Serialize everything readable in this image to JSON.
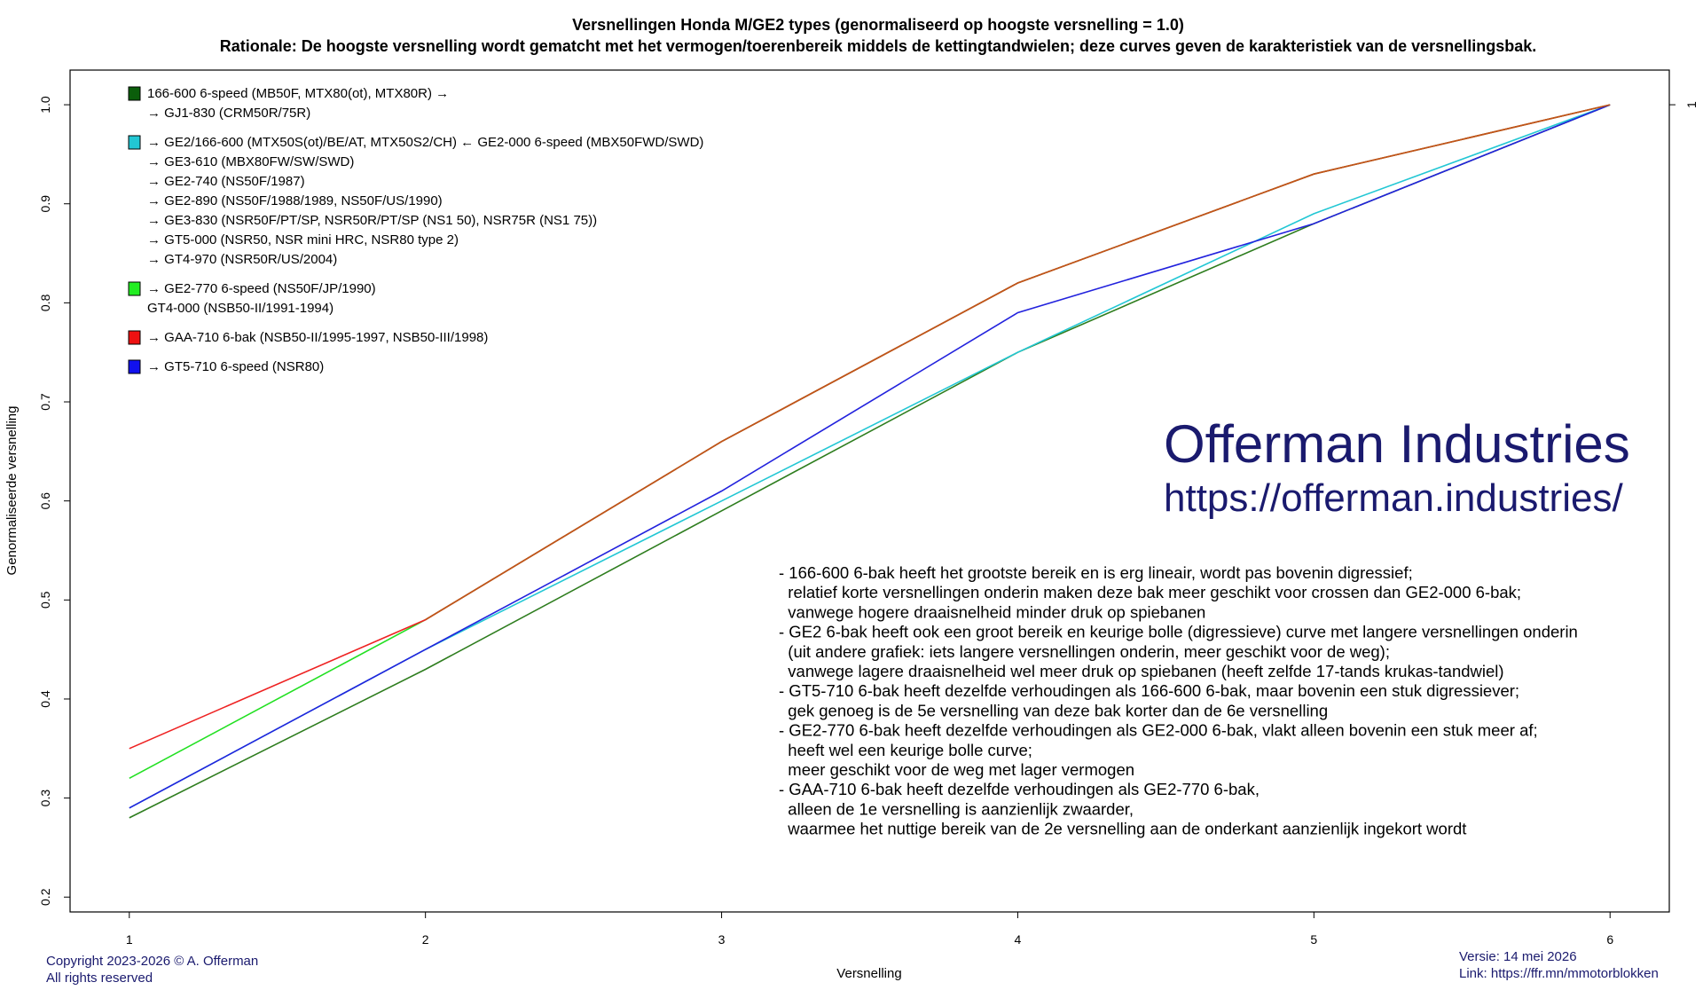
{
  "chart_data": {
    "type": "line",
    "title": "Versnellingen Honda M/GE2 types (genormaliseerd op hoogste versnelling = 1.0)",
    "subtitle": "Rationale: De hoogste versnelling wordt gematcht met het vermogen/toerenbereik middels de kettingtandwielen; deze curves geven de karakteristiek van de versnellingsbak.",
    "xlabel": "Versnelling",
    "ylabel": "Genormaliseerde versnelling",
    "x": [
      1,
      2,
      3,
      4,
      5,
      6
    ],
    "xlim": [
      0.8,
      6.2
    ],
    "ylim": [
      0.185,
      1.035
    ],
    "xticks": [
      "1",
      "2",
      "3",
      "4",
      "5",
      "6"
    ],
    "yticks": [
      "0.2",
      "0.3",
      "0.4",
      "0.5",
      "0.6",
      "0.7",
      "0.8",
      "0.9",
      "1.0"
    ],
    "ytick_values": [
      0.2,
      0.3,
      0.4,
      0.5,
      0.6,
      0.7,
      0.8,
      0.9,
      1.0
    ],
    "right_tick": "1",
    "grid": false,
    "legend_position": "top-left",
    "series": [
      {
        "name": "166-600 6-speed",
        "color": "#2e7d1e",
        "values": [
          0.28,
          0.43,
          0.59,
          0.75,
          0.88,
          1.0
        ]
      },
      {
        "name": "GE2-000 6-speed",
        "color": "#22c7d4",
        "values": [
          0.29,
          0.45,
          0.6,
          0.75,
          0.89,
          1.0
        ]
      },
      {
        "name": "GE2-770 6-speed",
        "color": "#22e022",
        "values": [
          0.32,
          0.48,
          0.66,
          0.82,
          0.93,
          1.0
        ]
      },
      {
        "name": "GAA-710 6-bak",
        "color": "#ee2222",
        "values": [
          0.35,
          0.48,
          0.66,
          0.82,
          0.93,
          1.0
        ]
      },
      {
        "name": "GT5-710 6-speed",
        "color": "#2222dd",
        "values": [
          0.29,
          0.45,
          0.61,
          0.79,
          0.88,
          1.0
        ]
      }
    ],
    "overlay_series": {
      "color": "#c0551a",
      "from_index": 1,
      "values": [
        0.35,
        0.48,
        0.66,
        0.82,
        0.93,
        1.0
      ]
    },
    "legend": [
      {
        "color": "#0b5e0b",
        "lines": [
          "166-600 6-speed (MB50F, MTX80(ot), MTX80R) →",
          "→ GJ1-830 (CRM50R/75R)"
        ]
      },
      {
        "color": "#22c7d4",
        "lines": [
          "→ GE2/166-600 (MTX50S(ot)/BE/AT, MTX50S2/CH) ← GE2-000 6-speed (MBX50FWD/SWD)",
          "→ GE3-610 (MBX80FW/SW/SWD)",
          "→ GE2-740 (NS50F/1987)",
          "→ GE2-890 (NS50F/1988/1989, NS50F/US/1990)",
          "→ GE3-830 (NSR50F/PT/SP, NSR50R/PT/SP (NS1 50), NSR75R (NS1 75))",
          "→ GT5-000 (NSR50, NSR mini HRC, NSR80 type 2)",
          "→ GT4-970 (NSR50R/US/2004)"
        ]
      },
      {
        "color": "#22ee22",
        "lines": [
          "→ GE2-770 6-speed (NS50F/JP/1990)",
          "GT4-000 (NSB50-II/1991-1994)"
        ]
      },
      {
        "color": "#ee1111",
        "lines": [
          "→ GAA-710 6-bak (NSB50-II/1995-1997, NSB50-III/1998)"
        ]
      },
      {
        "color": "#1111ee",
        "lines": [
          "→ GT5-710 6-speed (NSR80)"
        ]
      }
    ],
    "brand": {
      "name": "Offerman Industries",
      "url": "https://offerman.industries/"
    },
    "notes": [
      "- 166-600 6-bak heeft het grootste bereik en is erg lineair, wordt pas bovenin digressief;",
      "  relatief korte versnellingen onderin maken deze bak meer geschikt voor crossen dan GE2-000 6-bak;",
      "  vanwege hogere draaisnelheid minder druk op spiebanen",
      "- GE2 6-bak heeft ook een groot bereik en keurige bolle (digressieve) curve met langere versnellingen onderin",
      "  (uit andere grafiek: iets langere versnellingen onderin, meer geschikt voor de weg);",
      "  vanwege lagere draaisnelheid wel meer druk op spiebanen (heeft zelfde 17-tands krukas-tandwiel)",
      "- GT5-710 6-bak heeft dezelfde verhoudingen als 166-600 6-bak, maar bovenin een stuk digressiever;",
      "  gek genoeg is de 5e versnelling van deze bak korter dan de 6e versnelling",
      "- GE2-770 6-bak heeft dezelfde verhoudingen als GE2-000 6-bak, vlakt alleen bovenin een stuk meer af;",
      "  heeft wel een keurige bolle curve;",
      "  meer geschikt voor de weg met lager vermogen",
      "- GAA-710 6-bak heeft dezelfde verhoudingen als GE2-770 6-bak,",
      "  alleen de 1e versnelling is aanzienlijk zwaarder,",
      "  waarmee het nuttige bereik van de 2e versnelling aan de onderkant aanzienlijk ingekort wordt"
    ],
    "footer": {
      "copyright": "Copyright 2023-2026 © A. Offerman",
      "rights": "All rights reserved",
      "version": "Versie: 14 mei 2026",
      "link": "Link: https://ffr.mn/mmotorblokken"
    }
  }
}
